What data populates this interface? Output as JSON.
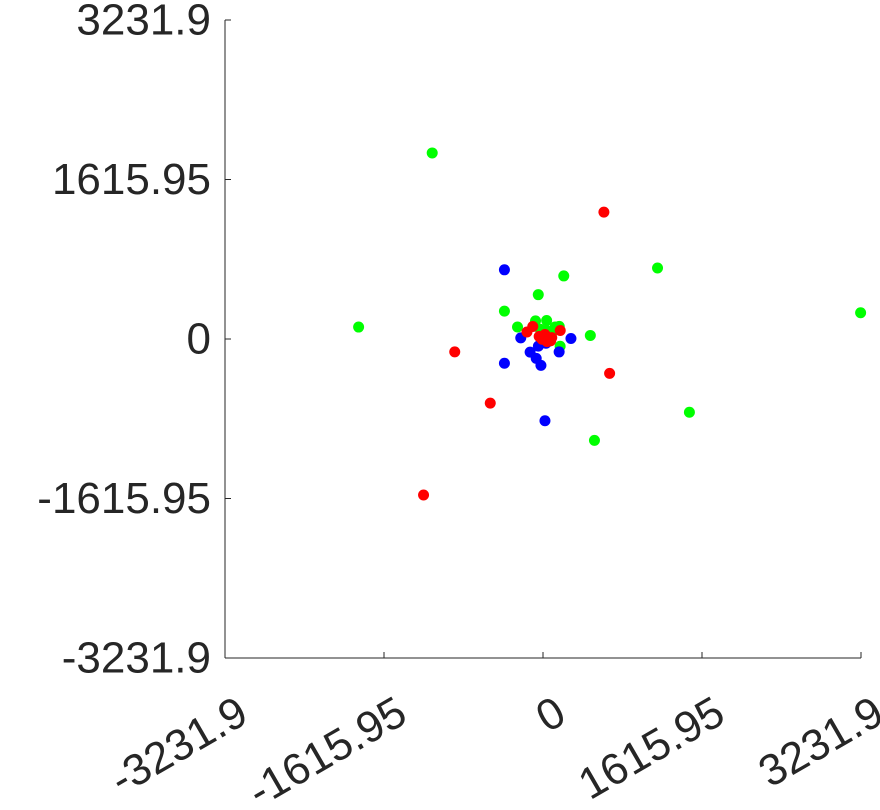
{
  "chart_data": {
    "type": "scatter",
    "title": "",
    "xlabel": "",
    "ylabel": "",
    "xlim": [
      -3231.9,
      3231.9
    ],
    "ylim": [
      -3231.9,
      3231.9
    ],
    "x_ticks": [
      -3231.9,
      -1615.95,
      0,
      1615.95,
      3231.9
    ],
    "y_ticks": [
      -3231.9,
      -1615.95,
      0,
      1615.95,
      3231.9
    ],
    "x_tick_labels": [
      "-3231.9",
      "-1615.95",
      "0",
      "1615.95",
      "3231.9"
    ],
    "y_tick_labels": [
      "-3231.9",
      "-1615.95",
      "0",
      "1615.95",
      "3231.9"
    ],
    "grid": false,
    "legend": "none",
    "series": [
      {
        "color": "#00ff00",
        "points": [
          [
            -1126,
            1885
          ],
          [
            -1874,
            121
          ],
          [
            3228,
            266
          ],
          [
            1164,
            719
          ],
          [
            1488,
            -742
          ],
          [
            211,
            639
          ],
          [
            -48,
            449
          ],
          [
            -392,
            282
          ],
          [
            -259,
            122
          ],
          [
            -76,
            183
          ],
          [
            37,
            187
          ],
          [
            123,
            121
          ],
          [
            165,
            128
          ],
          [
            92,
            66
          ],
          [
            481,
            36
          ],
          [
            523,
            -1027
          ],
          [
            35,
            86
          ],
          [
            -28,
            99
          ],
          [
            174,
            -74
          ]
        ]
      },
      {
        "color": "#0000ff",
        "points": [
          [
            -392,
            701
          ],
          [
            -392,
            -246
          ],
          [
            -226,
            11
          ],
          [
            -131,
            -133
          ],
          [
            -69,
            -196
          ],
          [
            -21,
            -267
          ],
          [
            20,
            -828
          ],
          [
            164,
            -131
          ],
          [
            284,
            5
          ],
          [
            -47,
            -72
          ],
          [
            30,
            -43
          ],
          [
            9,
            11
          ],
          [
            57,
            -24
          ]
        ]
      },
      {
        "color": "#ff0000",
        "points": [
          [
            619,
            1285
          ],
          [
            -897,
            -130
          ],
          [
            677,
            -348
          ],
          [
            -1214,
            -1580
          ],
          [
            -536,
            -650
          ],
          [
            -163,
            71
          ],
          [
            -39,
            26
          ],
          [
            20,
            46
          ],
          [
            89,
            14
          ],
          [
            175,
            86
          ],
          [
            -104,
            127
          ],
          [
            41,
            -26
          ],
          [
            -10,
            -2
          ],
          [
            78,
            -18
          ]
        ]
      }
    ]
  }
}
